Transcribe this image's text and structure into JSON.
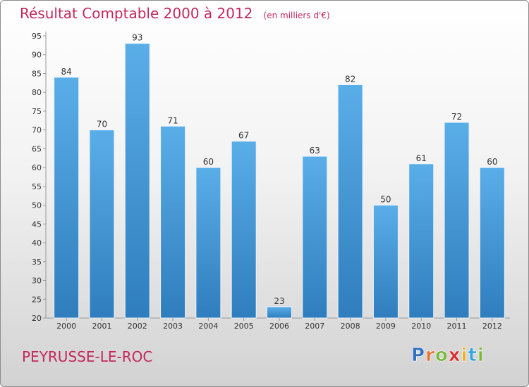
{
  "title": "Résultat Comptable 2000 à 2012",
  "unit_note": "(en milliers d'€)",
  "commune": "PEYRUSSE-LE-ROC",
  "brand": {
    "letters": [
      "P",
      "r",
      "o",
      "x",
      "i",
      "t",
      "i"
    ],
    "colors": [
      "#2f6fc4",
      "#e8722c",
      "#7ab73a",
      "#d92b2b",
      "#f0b021",
      "#2fa6d9",
      "#7ab73a"
    ]
  },
  "colors": {
    "bar": "#3f8fd2",
    "title": "#c4275b"
  },
  "chart_data": {
    "type": "bar",
    "categories": [
      "2000",
      "2001",
      "2002",
      "2003",
      "2004",
      "2005",
      "2006",
      "2007",
      "2008",
      "2009",
      "2010",
      "2011",
      "2012"
    ],
    "values": [
      84,
      70,
      93,
      71,
      60,
      67,
      23,
      63,
      82,
      50,
      61,
      72,
      60
    ],
    "ylim": [
      20,
      95
    ],
    "yticks": [
      20,
      25,
      30,
      35,
      40,
      45,
      50,
      55,
      60,
      65,
      70,
      75,
      80,
      85,
      90,
      95
    ],
    "grid": false,
    "data_labels": true
  }
}
